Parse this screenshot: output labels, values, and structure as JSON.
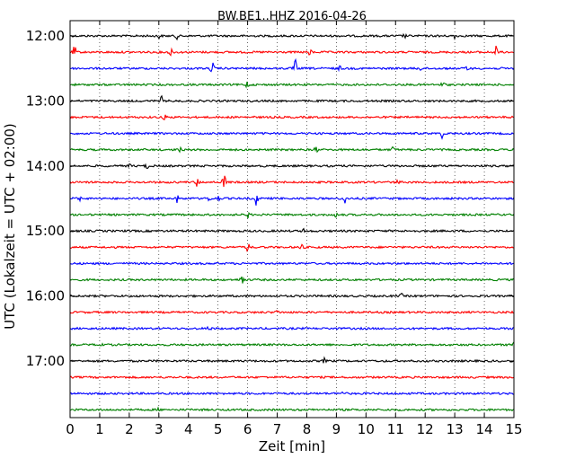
{
  "chart_data": {
    "type": "line",
    "title": "BW.BE1..HHZ 2016-04-26",
    "xlabel": "Zeit  [min]",
    "ylabel": "UTC (Lokalzeit = UTC + 02:00)",
    "xlim": [
      0,
      15
    ],
    "x_ticks": [
      "0",
      "1",
      "2",
      "3",
      "4",
      "5",
      "6",
      "7",
      "8",
      "9",
      "10",
      "11",
      "12",
      "13",
      "14",
      "15"
    ],
    "y_ticks": [
      {
        "label": "12:00",
        "row": 0
      },
      {
        "label": "13:00",
        "row": 4
      },
      {
        "label": "14:00",
        "row": 8
      },
      {
        "label": "15:00",
        "row": 12
      },
      {
        "label": "16:00",
        "row": 16
      },
      {
        "label": "17:00",
        "row": 20
      }
    ],
    "grid": "vertical dotted",
    "colors": [
      "#000000",
      "#ff0000",
      "#0000ff",
      "#008000"
    ],
    "traces": [
      {
        "start": "12:00",
        "events": [
          {
            "t": 3.0,
            "a": 3
          },
          {
            "t": 3.6,
            "a": 3
          },
          {
            "t": 11.3,
            "a": 2
          },
          {
            "t": 12.5,
            "a": 3
          },
          {
            "t": 13.0,
            "a": 4
          }
        ]
      },
      {
        "start": "12:15",
        "events": [
          {
            "t": 0.15,
            "a": 7
          },
          {
            "t": 3.4,
            "a": 7
          },
          {
            "t": 8.1,
            "a": 4
          },
          {
            "t": 14.4,
            "a": 7
          }
        ]
      },
      {
        "start": "12:30",
        "events": [
          {
            "t": 4.8,
            "a": 9
          },
          {
            "t": 7.6,
            "a": 11
          },
          {
            "t": 9.1,
            "a": 3
          },
          {
            "t": 11.8,
            "a": 4
          },
          {
            "t": 13.4,
            "a": 3
          }
        ]
      },
      {
        "start": "12:45",
        "events": [
          {
            "t": 6.0,
            "a": 5
          },
          {
            "t": 12.6,
            "a": 4
          }
        ]
      },
      {
        "start": "13:00",
        "events": [
          {
            "t": 3.1,
            "a": 5
          }
        ]
      },
      {
        "start": "13:15",
        "events": [
          {
            "t": 3.2,
            "a": 3
          }
        ]
      },
      {
        "start": "13:30",
        "events": [
          {
            "t": 12.6,
            "a": 7
          }
        ]
      },
      {
        "start": "13:45",
        "events": [
          {
            "t": 3.7,
            "a": 3
          },
          {
            "t": 8.3,
            "a": 4
          },
          {
            "t": 10.9,
            "a": 3
          }
        ]
      },
      {
        "start": "14:00",
        "events": [
          {
            "t": 2.0,
            "a": 2
          },
          {
            "t": 2.6,
            "a": 3
          }
        ]
      },
      {
        "start": "14:15",
        "events": [
          {
            "t": 4.3,
            "a": 5
          },
          {
            "t": 5.2,
            "a": 12
          },
          {
            "t": 11.1,
            "a": 4
          }
        ]
      },
      {
        "start": "14:30",
        "events": [
          {
            "t": 0.3,
            "a": 3
          },
          {
            "t": 3.6,
            "a": 5
          },
          {
            "t": 4.7,
            "a": 4
          },
          {
            "t": 5.0,
            "a": 3
          },
          {
            "t": 6.3,
            "a": 8
          },
          {
            "t": 9.3,
            "a": 7
          }
        ]
      },
      {
        "start": "14:45",
        "events": [
          {
            "t": 6.0,
            "a": 3
          },
          {
            "t": 9.0,
            "a": 3
          }
        ]
      },
      {
        "start": "15:00",
        "events": [
          {
            "t": 7.9,
            "a": 2
          }
        ]
      },
      {
        "start": "15:15",
        "events": [
          {
            "t": 6.0,
            "a": 6
          },
          {
            "t": 7.8,
            "a": 6
          }
        ]
      },
      {
        "start": "15:30",
        "events": []
      },
      {
        "start": "15:45",
        "events": [
          {
            "t": 5.8,
            "a": 10
          }
        ]
      },
      {
        "start": "16:00",
        "events": [
          {
            "t": 11.2,
            "a": 2
          }
        ]
      },
      {
        "start": "16:15",
        "events": [
          {
            "t": 7.0,
            "a": 2
          }
        ]
      },
      {
        "start": "16:30",
        "events": [
          {
            "t": 4.7,
            "a": 4
          },
          {
            "t": 8.9,
            "a": 4
          }
        ]
      },
      {
        "start": "16:45",
        "events": [
          {
            "t": 1.0,
            "a": 8
          },
          {
            "t": 15.0,
            "a": 4
          }
        ]
      },
      {
        "start": "17:00",
        "events": [
          {
            "t": 8.6,
            "a": 3
          }
        ]
      },
      {
        "start": "17:15",
        "events": []
      },
      {
        "start": "17:30",
        "events": [
          {
            "t": 9.2,
            "a": 2
          }
        ]
      },
      {
        "start": "17:45",
        "events": [
          {
            "t": 3.0,
            "a": 2
          }
        ]
      }
    ]
  }
}
